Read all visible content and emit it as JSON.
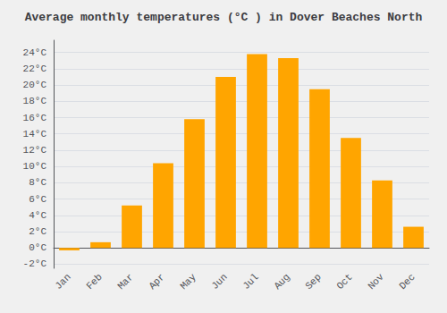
{
  "chart_data": {
    "type": "bar",
    "title": "Average monthly temperatures (°C ) in Dover Beaches North",
    "categories": [
      "Jan",
      "Feb",
      "Mar",
      "Apr",
      "May",
      "Jun",
      "Jul",
      "Aug",
      "Sep",
      "Oct",
      "Nov",
      "Dec"
    ],
    "values": [
      -0.3,
      0.7,
      5.2,
      10.4,
      15.8,
      21.0,
      23.8,
      23.3,
      19.5,
      13.5,
      8.3,
      2.6
    ],
    "color": "#FFA500",
    "ylim": [
      -2.5,
      25.5
    ],
    "yticks": [
      {
        "value": -2,
        "label": "-2°C"
      },
      {
        "value": 0,
        "label": "0°C"
      },
      {
        "value": 2,
        "label": "2°C"
      },
      {
        "value": 4,
        "label": "4°C"
      },
      {
        "value": 6,
        "label": "6°C"
      },
      {
        "value": 8,
        "label": "8°C"
      },
      {
        "value": 10,
        "label": "10°C"
      },
      {
        "value": 12,
        "label": "12°C"
      },
      {
        "value": 14,
        "label": "14°C"
      },
      {
        "value": 16,
        "label": "16°C"
      },
      {
        "value": 18,
        "label": "18°C"
      },
      {
        "value": 20,
        "label": "20°C"
      },
      {
        "value": 22,
        "label": "22°C"
      },
      {
        "value": 24,
        "label": "24°C"
      }
    ],
    "grid": true
  }
}
